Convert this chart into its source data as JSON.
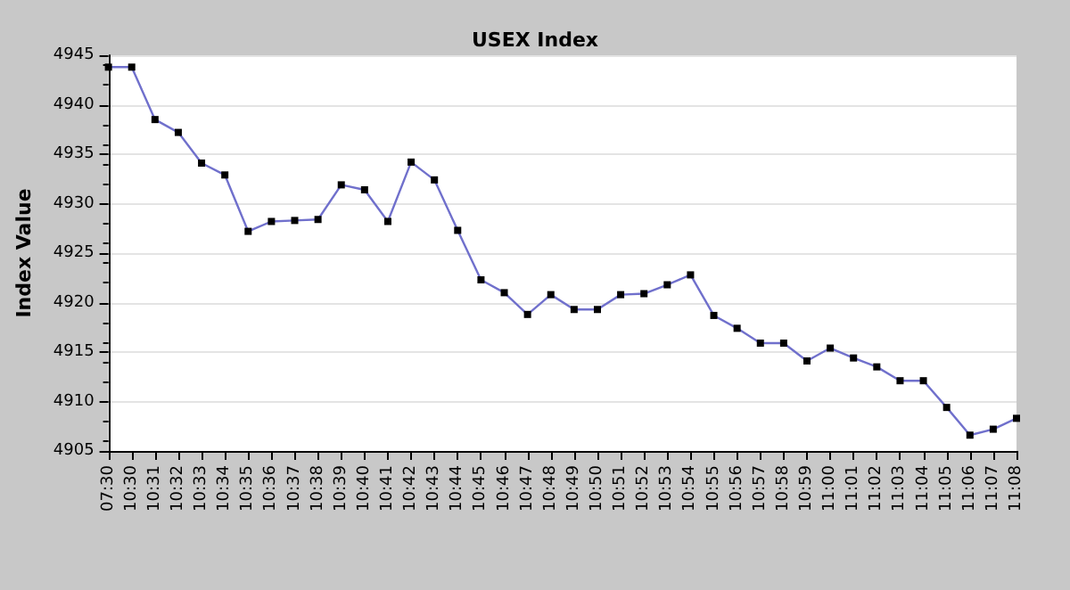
{
  "chart_data": {
    "type": "line",
    "title": "USEX Index",
    "ylabel": "Index Value",
    "categories": [
      "07:30",
      "10:30",
      "10:31",
      "10:32",
      "10:33",
      "10:34",
      "10:35",
      "10:36",
      "10:37",
      "10:38",
      "10:39",
      "10:40",
      "10:41",
      "10:42",
      "10:43",
      "10:44",
      "10:45",
      "10:46",
      "10:47",
      "10:48",
      "10:49",
      "10:50",
      "10:51",
      "10:52",
      "10:53",
      "10:54",
      "10:55",
      "10:56",
      "10:57",
      "10:58",
      "10:59",
      "11:00",
      "11:01",
      "11:02",
      "11:03",
      "11:04",
      "11:05",
      "11:06",
      "11:07",
      "11:08"
    ],
    "series": [
      {
        "color": "#7070cc",
        "values": [
          4943.8,
          4943.8,
          4938.5,
          4937.2,
          4934.1,
          4932.9,
          4927.2,
          4928.2,
          4928.3,
          4928.4,
          4931.9,
          4931.4,
          4928.2,
          4934.2,
          4932.4,
          4927.3,
          4922.3,
          4921.0,
          4918.8,
          4920.8,
          4919.3,
          4919.3,
          4920.8,
          4920.9,
          4921.8,
          4922.8,
          4918.7,
          4917.4,
          4915.9,
          4915.9,
          4914.1,
          4915.4,
          4914.4,
          4913.5,
          4912.1,
          4912.1,
          4909.4,
          4906.6,
          4907.2,
          4908.3
        ]
      }
    ],
    "ylim": [
      4905,
      4945
    ],
    "yticks": [
      4905,
      4910,
      4915,
      4920,
      4925,
      4930,
      4935,
      4940,
      4945
    ],
    "grid": "y",
    "marker": "square",
    "line_style": "solid"
  }
}
